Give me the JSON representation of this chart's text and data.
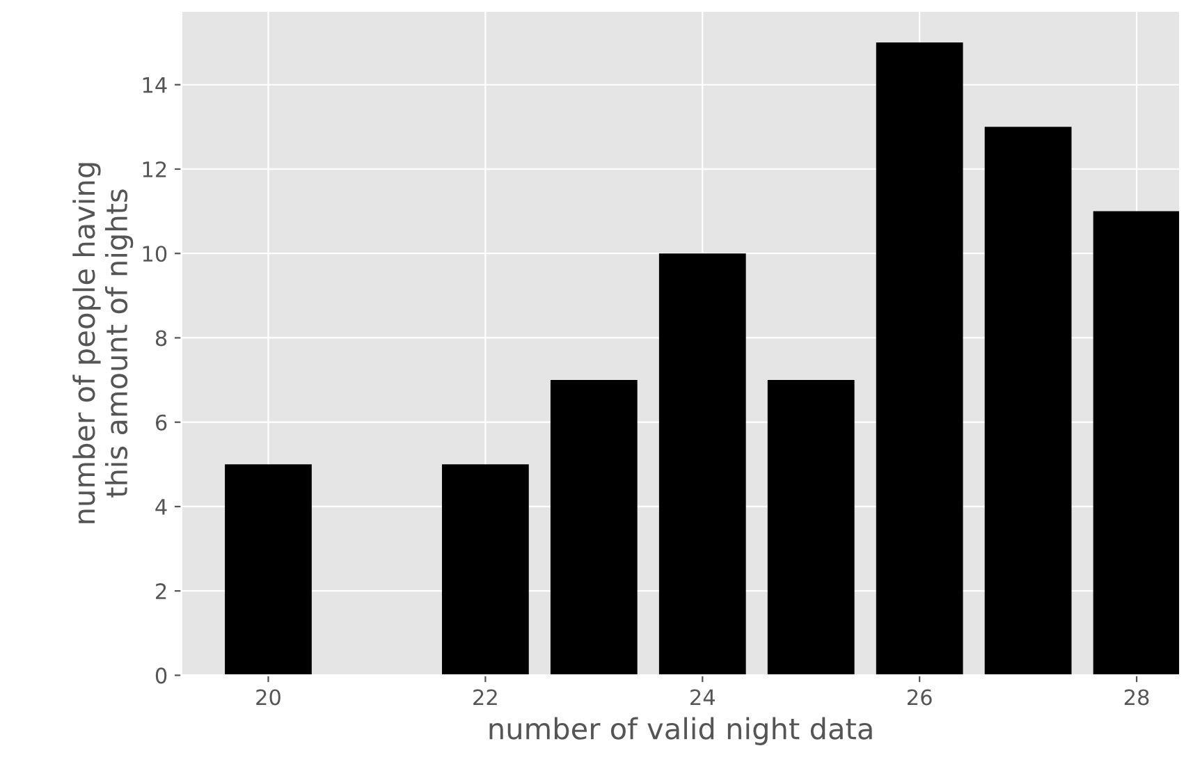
{
  "chart_data": {
    "type": "bar",
    "xlabel": "number of valid night data",
    "ylabel": "number of people having\nthis amount of nights",
    "x": [
      20,
      22,
      23,
      24,
      25,
      26,
      27,
      28
    ],
    "values": [
      5,
      5,
      7,
      10,
      7,
      15,
      13,
      11
    ],
    "color": "#000000",
    "xlim": [
      19.2,
      28.4
    ],
    "xticks": [
      20,
      22,
      24,
      26,
      28
    ],
    "ylim": [
      0,
      15.75
    ],
    "yticks": [
      0,
      2,
      4,
      6,
      8,
      10,
      12,
      14
    ],
    "grid": true
  }
}
